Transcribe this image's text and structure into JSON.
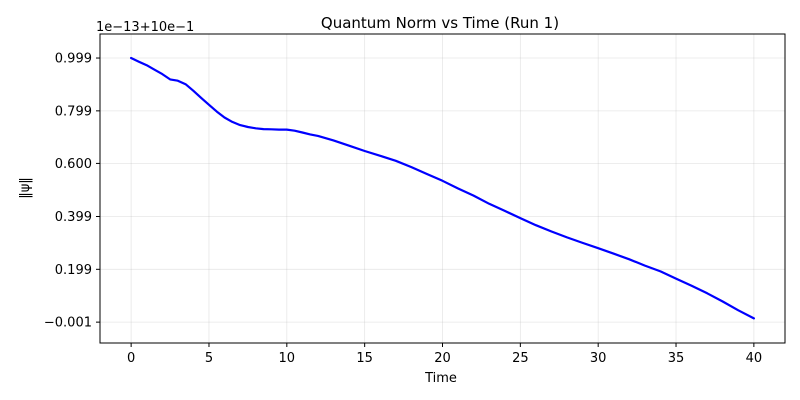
{
  "chart_data": {
    "type": "line",
    "title": "Quantum Norm vs Time (Run 1)",
    "xlabel": "Time",
    "ylabel": "‖ψ‖",
    "y_offset_label": "1e−13+10e−1",
    "xlim": [
      -2,
      42
    ],
    "ylim": [
      -0.08,
      1.09
    ],
    "x_ticks": [
      0,
      5,
      10,
      15,
      20,
      25,
      30,
      35,
      40
    ],
    "x_tick_labels": [
      "0",
      "5",
      "10",
      "15",
      "20",
      "25",
      "30",
      "35",
      "40"
    ],
    "y_ticks": [
      -0.001,
      0.199,
      0.399,
      0.6,
      0.799,
      0.999
    ],
    "y_tick_labels": [
      "−0.001",
      "0.199",
      "0.399",
      "0.600",
      "0.799",
      "0.999"
    ],
    "grid": true,
    "series": [
      {
        "color": "#0000ff",
        "x": [
          0,
          0.5,
          1,
          1.5,
          2,
          2.5,
          3,
          3.5,
          4,
          4.5,
          5,
          5.5,
          6,
          6.5,
          7,
          7.5,
          8,
          8.5,
          9,
          9.5,
          10,
          10.5,
          11,
          11.5,
          12,
          13,
          14,
          15,
          16,
          17,
          18,
          19,
          20,
          21,
          22,
          23,
          24,
          25,
          26,
          27,
          28,
          29,
          30,
          31,
          32,
          33,
          34,
          35,
          36,
          37,
          38,
          39,
          40
        ],
        "y": [
          0.999,
          0.985,
          0.972,
          0.955,
          0.938,
          0.918,
          0.913,
          0.9,
          0.875,
          0.848,
          0.822,
          0.796,
          0.774,
          0.757,
          0.745,
          0.738,
          0.733,
          0.73,
          0.729,
          0.728,
          0.728,
          0.724,
          0.717,
          0.71,
          0.704,
          0.687,
          0.667,
          0.647,
          0.629,
          0.61,
          0.586,
          0.56,
          0.534,
          0.505,
          0.478,
          0.447,
          0.42,
          0.393,
          0.366,
          0.342,
          0.32,
          0.299,
          0.279,
          0.258,
          0.237,
          0.213,
          0.191,
          0.164,
          0.137,
          0.108,
          0.077,
          0.044,
          0.013
        ]
      }
    ]
  }
}
